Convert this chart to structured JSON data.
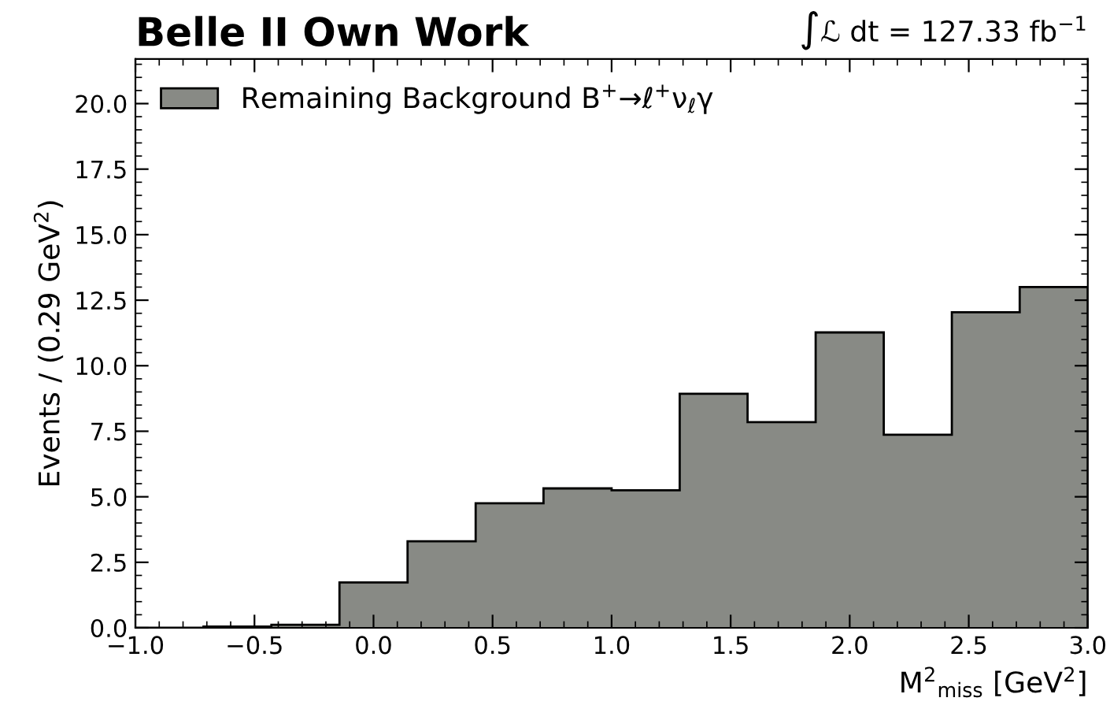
{
  "chart_data": {
    "type": "histogram",
    "title": "Belle II Own Work",
    "annotations": [
      "∫ℒ dt = 127.33 fb$^{−1}$"
    ],
    "xlabel": "M$^{2}$$_{miss}$ [GeV$^{2}$]",
    "ylabel": "Events / (0.29 GeV$^{2}$)",
    "bins": [
      -1.0,
      -0.714,
      -0.429,
      -0.143,
      0.143,
      0.429,
      0.714,
      1.0,
      1.286,
      1.571,
      1.857,
      2.143,
      2.429,
      2.714,
      3.0
    ],
    "series": [
      {
        "name": "Remaining Background B$^{+}$→ℓ$^{+}$ν$_{ℓ}$γ",
        "color": "#888a85",
        "values": [
          0,
          0.05,
          0.12,
          1.73,
          3.3,
          4.75,
          5.32,
          5.25,
          8.93,
          7.85,
          11.27,
          7.37,
          12.04,
          13.0
        ]
      }
    ],
    "xlim": [
      -1.0,
      3.0
    ],
    "ylim": [
      0,
      21.7
    ],
    "xticks": [
      {
        "value": -1.0,
        "label": "−1.0"
      },
      {
        "value": -0.5,
        "label": "−0.5"
      },
      {
        "value": 0.0,
        "label": "0.0"
      },
      {
        "value": 0.5,
        "label": "0.5"
      },
      {
        "value": 1.0,
        "label": "1.0"
      },
      {
        "value": 1.5,
        "label": "1.5"
      },
      {
        "value": 2.0,
        "label": "2.0"
      },
      {
        "value": 2.5,
        "label": "2.5"
      },
      {
        "value": 3.0,
        "label": "3.0"
      }
    ],
    "yticks": [
      {
        "value": 0,
        "label": "0.0"
      },
      {
        "value": 2.5,
        "label": "2.5"
      },
      {
        "value": 5,
        "label": "5.0"
      },
      {
        "value": 7.5,
        "label": "7.5"
      },
      {
        "value": 10,
        "label": "10.0"
      },
      {
        "value": 12.5,
        "label": "12.5"
      },
      {
        "value": 15,
        "label": "15.0"
      },
      {
        "value": 17.5,
        "label": "17.5"
      },
      {
        "value": 20,
        "label": "20.0"
      }
    ],
    "legend": "top left",
    "grid": false
  }
}
